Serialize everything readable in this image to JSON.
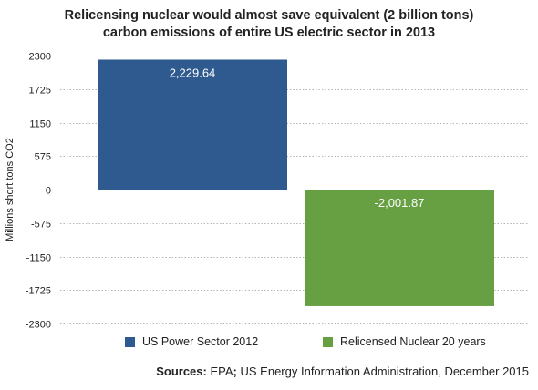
{
  "title_line1": "Relicensing nuclear would almost save equivalent (2 billion tons)",
  "title_line2": "carbon emissions of entire US electric sector in 2013",
  "source": {
    "label": "Sources:",
    "text": "EPA",
    "sep": ";",
    "rest": " US Energy Information Administration, December 2015"
  },
  "chart_data": {
    "type": "bar",
    "categories": [
      "US Power Sector 2012",
      "Relicensed Nuclear 20 years"
    ],
    "values": [
      2229.64,
      -2001.87
    ],
    "value_labels": [
      "2,229.64",
      "-2,001.87"
    ],
    "colors": [
      "#2e5a8f",
      "#66a043"
    ],
    "ylabel": "Millions short tons CO2",
    "ylim": [
      -2300,
      2300
    ],
    "yticks": [
      2300,
      1725,
      1150,
      575,
      0,
      -575,
      -1150,
      -1725,
      -2300
    ],
    "grid": true,
    "legend_position": "bottom"
  }
}
